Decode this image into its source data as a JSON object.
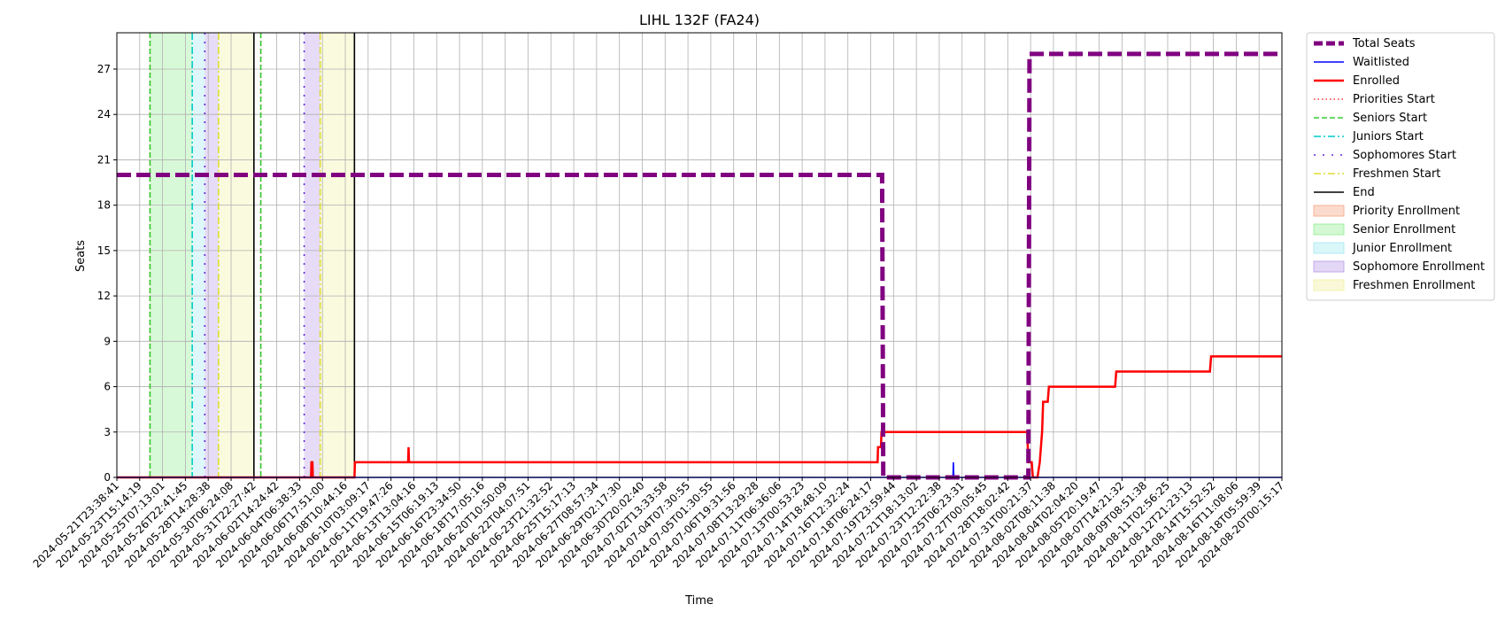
{
  "chart_data": {
    "type": "line",
    "title": "LIHL 132F (FA24)",
    "xlabel": "Time",
    "ylabel": "Seats",
    "ylim": [
      0,
      29.4
    ],
    "yticks": [
      0,
      3,
      6,
      9,
      12,
      15,
      18,
      21,
      24,
      27
    ],
    "grid": true,
    "legend_position": "outside-right",
    "x_tick_labels": [
      "2024-05-21T23:38:41",
      "2024-05-23T15:14:19",
      "2024-05-25T07:13:01",
      "2024-05-26T22:41:45",
      "2024-05-28T14:28:38",
      "2024-05-30T06:24:08",
      "2024-05-31T22:27:42",
      "2024-06-02T14:24:42",
      "2024-06-04T06:38:33",
      "2024-06-06T17:51:00",
      "2024-06-08T10:44:16",
      "2024-06-10T03:09:17",
      "2024-06-11T19:47:26",
      "2024-06-13T13:04:16",
      "2024-06-15T06:19:13",
      "2024-06-16T23:34:50",
      "2024-06-18T17:05:16",
      "2024-06-20T10:50:09",
      "2024-06-22T04:07:51",
      "2024-06-23T21:32:52",
      "2024-06-25T15:17:13",
      "2024-06-27T08:57:34",
      "2024-06-29T02:17:30",
      "2024-06-30T20:02:40",
      "2024-07-02T13:33:58",
      "2024-07-04T07:30:55",
      "2024-07-05T01:30:55",
      "2024-07-06T19:31:56",
      "2024-07-08T13:29:28",
      "2024-07-11T06:36:06",
      "2024-07-13T00:53:23",
      "2024-07-14T18:48:10",
      "2024-07-16T12:32:24",
      "2024-07-18T06:24:17",
      "2024-07-19T23:59:44",
      "2024-07-21T18:13:02",
      "2024-07-23T12:22:38",
      "2024-07-25T06:23:31",
      "2024-07-27T00:05:45",
      "2024-07-28T18:02:42",
      "2024-07-31T00:21:37",
      "2024-08-02T08:11:38",
      "2024-08-04T02:04:20",
      "2024-08-05T20:19:47",
      "2024-08-07T14:21:32",
      "2024-08-09T08:51:38",
      "2024-08-11T02:56:25",
      "2024-08-12T21:23:13",
      "2024-08-14T15:52:52",
      "2024-08-16T11:08:06",
      "2024-08-18T05:59:39",
      "2024-08-20T00:15:17"
    ],
    "x_range_index": [
      0,
      51
    ],
    "series": [
      {
        "name": "Total Seats",
        "color": "#800080",
        "style": "dashed-thick",
        "points": [
          [
            0,
            20
          ],
          [
            33.5,
            20
          ],
          [
            33.55,
            0
          ],
          [
            39.9,
            0
          ],
          [
            39.95,
            28
          ],
          [
            51,
            28
          ]
        ]
      },
      {
        "name": "Waitlisted",
        "color": "#0000ff",
        "style": "solid",
        "points": [
          [
            0,
            0
          ],
          [
            36.6,
            0
          ],
          [
            36.62,
            1
          ],
          [
            36.64,
            0
          ],
          [
            51,
            0
          ]
        ]
      },
      {
        "name": "Enrolled",
        "color": "#ff0000",
        "style": "solid-thick",
        "points": [
          [
            0,
            0
          ],
          [
            8.5,
            0
          ],
          [
            8.52,
            1
          ],
          [
            8.56,
            1
          ],
          [
            8.58,
            0
          ],
          [
            10.4,
            0
          ],
          [
            10.42,
            1
          ],
          [
            12.75,
            1
          ],
          [
            12.77,
            2
          ],
          [
            12.79,
            1
          ],
          [
            33.3,
            1
          ],
          [
            33.32,
            2
          ],
          [
            33.45,
            2
          ],
          [
            33.47,
            3
          ],
          [
            39.85,
            3
          ],
          [
            39.9,
            1
          ],
          [
            40.05,
            1
          ],
          [
            40.1,
            0
          ],
          [
            40.3,
            0
          ],
          [
            40.4,
            1
          ],
          [
            40.5,
            3
          ],
          [
            40.55,
            5
          ],
          [
            40.75,
            5
          ],
          [
            40.8,
            6
          ],
          [
            43.7,
            6
          ],
          [
            43.75,
            7
          ],
          [
            47.85,
            7
          ],
          [
            47.9,
            8
          ],
          [
            51,
            8
          ]
        ]
      }
    ],
    "vlines": [
      {
        "name": "Priorities Start",
        "color": "#ff3333",
        "style": "dotted",
        "x": [
          1.45,
          6.3
        ]
      },
      {
        "name": "Seniors Start",
        "color": "#33cc33",
        "style": "dashed",
        "x": [
          1.45,
          6.3
        ]
      },
      {
        "name": "Juniors Start",
        "color": "#00cccc",
        "style": "dashdot",
        "x": [
          3.3
        ]
      },
      {
        "name": "Sophomores Start",
        "color": "#6622dd",
        "style": "loosedot",
        "x": [
          3.85,
          8.2
        ]
      },
      {
        "name": "Freshmen Start",
        "color": "#dddd33",
        "style": "dashdot",
        "x": [
          4.45,
          8.9
        ]
      },
      {
        "name": "End",
        "color": "#000000",
        "style": "solid",
        "x": [
          6.0,
          10.4
        ]
      }
    ],
    "spans": [
      {
        "name": "Priority Enrollment",
        "color": "#f4a582",
        "ranges": [
          [
            1.45,
            1.45
          ],
          [
            6.3,
            6.3
          ]
        ]
      },
      {
        "name": "Senior Enrollment",
        "color": "#90ee90",
        "ranges": [
          [
            1.45,
            3.3
          ]
        ]
      },
      {
        "name": "Junior Enrollment",
        "color": "#a0e8f0",
        "ranges": [
          [
            3.3,
            3.85
          ]
        ]
      },
      {
        "name": "Sophomore Enrollment",
        "color": "#b89ae8",
        "ranges": [
          [
            3.85,
            4.45
          ],
          [
            8.2,
            8.9
          ]
        ]
      },
      {
        "name": "Freshmen Enrollment",
        "color": "#f0f0a0",
        "ranges": [
          [
            4.45,
            6.0
          ],
          [
            8.9,
            10.4
          ]
        ]
      }
    ]
  }
}
